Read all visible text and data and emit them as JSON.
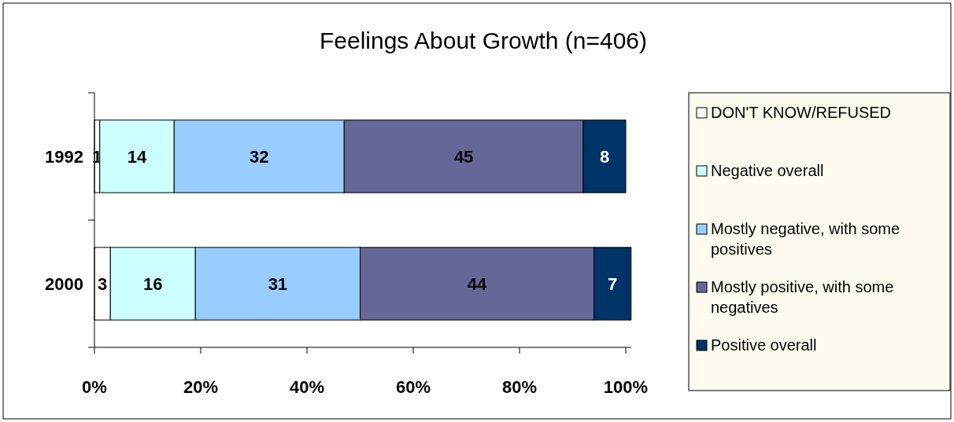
{
  "chart_data": {
    "type": "bar",
    "title": "Feelings About Growth (n=406)",
    "orientation": "horizontal",
    "stacked": true,
    "categories": [
      "1992",
      "2000"
    ],
    "series": [
      {
        "name": "DON'T KNOW/REFUSED",
        "color": "#ffffff",
        "values": [
          1,
          3
        ]
      },
      {
        "name": "Negative overall",
        "color": "#ccffff",
        "values": [
          14,
          16
        ]
      },
      {
        "name": "Mostly negative, with some positives",
        "color": "#99ccff",
        "values": [
          32,
          31
        ]
      },
      {
        "name": "Mostly positive, with some negatives",
        "color": "#666699",
        "values": [
          45,
          44
        ]
      },
      {
        "name": "Positive overall",
        "color": "#003366",
        "values": [
          8,
          7
        ]
      }
    ],
    "xlim": [
      0,
      101
    ],
    "xticks": [
      {
        "value": 0,
        "label": "0%"
      },
      {
        "value": 20,
        "label": "20%"
      },
      {
        "value": 40,
        "label": "40%"
      },
      {
        "value": 60,
        "label": "60%"
      },
      {
        "value": 80,
        "label": "80%"
      },
      {
        "value": 100,
        "label": "100%"
      }
    ],
    "data_labels": true,
    "legend": "right",
    "grid": false
  }
}
